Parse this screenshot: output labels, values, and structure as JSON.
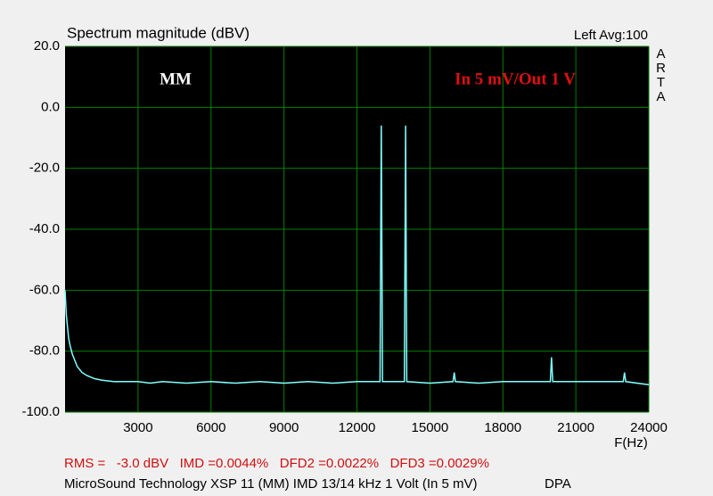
{
  "chart_data": {
    "type": "line",
    "title": "Spectrum magnitude (dBV)",
    "subtitle": "Left  Avg:100",
    "side_label": "ARTA",
    "annotations": [
      "MM",
      "In 5 mV/Out 1 V"
    ],
    "x_label": "F(Hz)",
    "footer": [
      "RMS =   -3.0 dBV   IMD =0.0044%   DFD2 =0.0022%   DFD3 =0.0029%",
      "MicroSound Technology XSP 11 (MM) IMD 13/14 kHz 1 Volt (In 5 mV)",
      "DPA"
    ],
    "color": "#80ffff",
    "grid": true,
    "x": [
      0,
      50,
      100,
      150,
      200,
      300,
      400,
      500,
      700,
      900,
      1200,
      1500,
      2000,
      2500,
      3000,
      3500,
      4000,
      5000,
      6000,
      7000,
      8000,
      9000,
      10000,
      11000,
      12000,
      12950,
      13000,
      13050,
      13950,
      14000,
      14050,
      15000,
      15950,
      16000,
      16050,
      17000,
      18000,
      19000,
      19950,
      20000,
      20050,
      21000,
      22000,
      22950,
      23000,
      23050,
      24000
    ],
    "values": [
      -60,
      -68,
      -72,
      -76,
      -78,
      -81,
      -83,
      -85,
      -87,
      -88,
      -89,
      -89.5,
      -90,
      -90,
      -90,
      -90.5,
      -90,
      -90.5,
      -90,
      -90.5,
      -90,
      -90.5,
      -90,
      -90.5,
      -90,
      -90,
      -6,
      -90,
      -90,
      -6,
      -90,
      -90.5,
      -90,
      -87,
      -90,
      -90.5,
      -90,
      -90,
      -90,
      -82,
      -90,
      -90,
      -90,
      -90,
      -87,
      -90,
      -91
    ],
    "xlim": [
      0,
      24000
    ],
    "xticks": [
      3000,
      6000,
      9000,
      12000,
      15000,
      18000,
      21000,
      24000
    ],
    "ylim": [
      -100,
      20
    ],
    "yticks": [
      {
        "value": 20,
        "label": "20.0"
      },
      {
        "value": 0,
        "label": "0.0"
      },
      {
        "value": -20,
        "label": "-20.0"
      },
      {
        "value": -40,
        "label": "-40.0"
      },
      {
        "value": -60,
        "label": "-60.0"
      },
      {
        "value": -80,
        "label": "-80.0"
      },
      {
        "value": -100,
        "label": "-100.0"
      }
    ]
  }
}
